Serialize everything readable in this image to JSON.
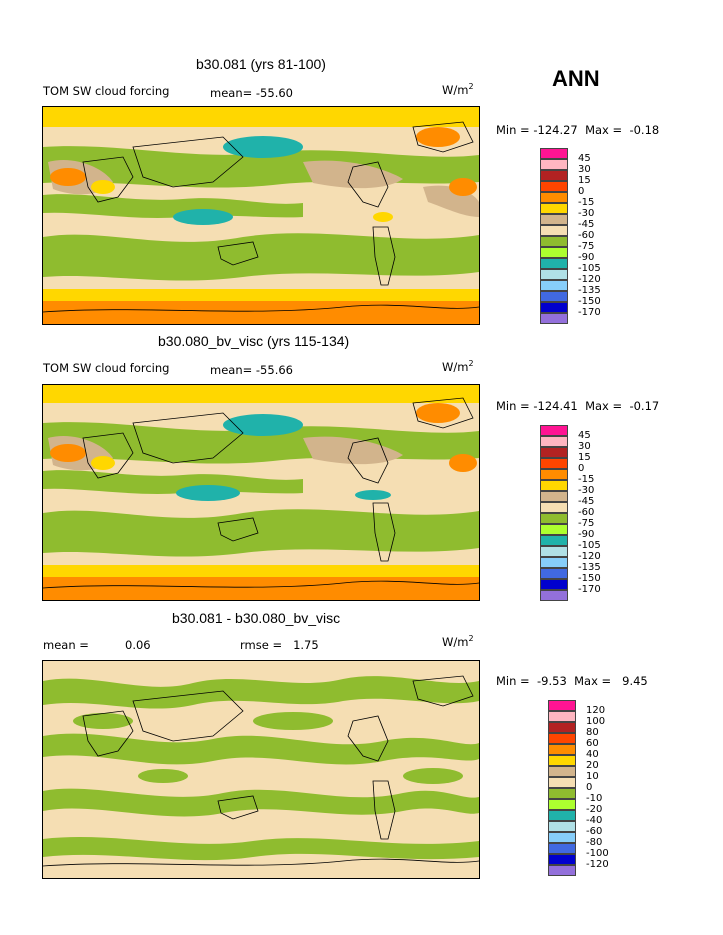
{
  "season": "ANN",
  "panels": [
    {
      "title": "b30.081 (yrs 81-100)",
      "left_label": "TOM SW cloud forcing",
      "mean_label": "mean=",
      "mean_value": "-55.60",
      "units": "W/m",
      "units_sup": "2",
      "min_label": "Min =",
      "min_value": "-124.27",
      "max_label": "Max =",
      "max_value": "-0.18"
    },
    {
      "title": "b30.080_bv_visc (yrs 115-134)",
      "left_label": "TOM SW cloud forcing",
      "mean_label": "mean=",
      "mean_value": "-55.66",
      "units": "W/m",
      "units_sup": "2",
      "min_label": "Min =",
      "min_value": "-124.41",
      "max_label": "Max =",
      "max_value": "-0.17"
    },
    {
      "title": "b30.081 - b30.080_bv_visc",
      "left_label": "mean =",
      "mean_label": "",
      "mean_value": "0.06",
      "rmse_label": "rmse =",
      "rmse_value": "1.75",
      "units": "W/m",
      "units_sup": "2",
      "min_label": "Min =",
      "min_value": "-9.53",
      "max_label": "Max =",
      "max_value": "9.45"
    }
  ],
  "colorbar_abs": {
    "colors": [
      "#ff1493",
      "#ffb6c1",
      "#b22222",
      "#ff4500",
      "#ff8c00",
      "#ffd700",
      "#d2b48c",
      "#f5deb3",
      "#8fbc2f",
      "#adff2f",
      "#20b2aa",
      "#b0e0e6",
      "#87cefa",
      "#4169e1",
      "#0000cd",
      "#9370db"
    ],
    "ticks": [
      "45",
      "30",
      "15",
      "0",
      "-15",
      "-30",
      "-45",
      "-60",
      "-75",
      "-90",
      "-105",
      "-120",
      "-135",
      "-150",
      "-170"
    ]
  },
  "colorbar_diff": {
    "colors": [
      "#ff1493",
      "#ffb6c1",
      "#b22222",
      "#ff4500",
      "#ff8c00",
      "#ffd700",
      "#d2b48c",
      "#f5deb3",
      "#8fbc2f",
      "#adff2f",
      "#20b2aa",
      "#b0e0e6",
      "#87cefa",
      "#4169e1",
      "#0000cd",
      "#9370db"
    ],
    "ticks": [
      "120",
      "100",
      "80",
      "60",
      "40",
      "20",
      "10",
      "0",
      "-10",
      "-20",
      "-40",
      "-60",
      "-80",
      "-100",
      "-120"
    ]
  },
  "chart_data": [
    {
      "type": "heatmap",
      "title": "b30.081 (yrs 81-100)",
      "variable": "TOM SW cloud forcing",
      "units": "W/m2",
      "mean": -55.6,
      "min": -124.27,
      "max": -0.18,
      "contour_levels": [
        45,
        30,
        15,
        0,
        -15,
        -30,
        -45,
        -60,
        -75,
        -90,
        -105,
        -120,
        -135,
        -150,
        -170
      ]
    },
    {
      "type": "heatmap",
      "title": "b30.080_bv_visc (yrs 115-134)",
      "variable": "TOM SW cloud forcing",
      "units": "W/m2",
      "mean": -55.66,
      "min": -124.41,
      "max": -0.17,
      "contour_levels": [
        45,
        30,
        15,
        0,
        -15,
        -30,
        -45,
        -60,
        -75,
        -90,
        -105,
        -120,
        -135,
        -150,
        -170
      ]
    },
    {
      "type": "heatmap",
      "title": "b30.081 - b30.080_bv_visc",
      "units": "W/m2",
      "mean": 0.06,
      "rmse": 1.75,
      "min": -9.53,
      "max": 9.45,
      "contour_levels": [
        120,
        100,
        80,
        60,
        40,
        20,
        10,
        0,
        -10,
        -20,
        -40,
        -60,
        -80,
        -100,
        -120
      ]
    }
  ]
}
